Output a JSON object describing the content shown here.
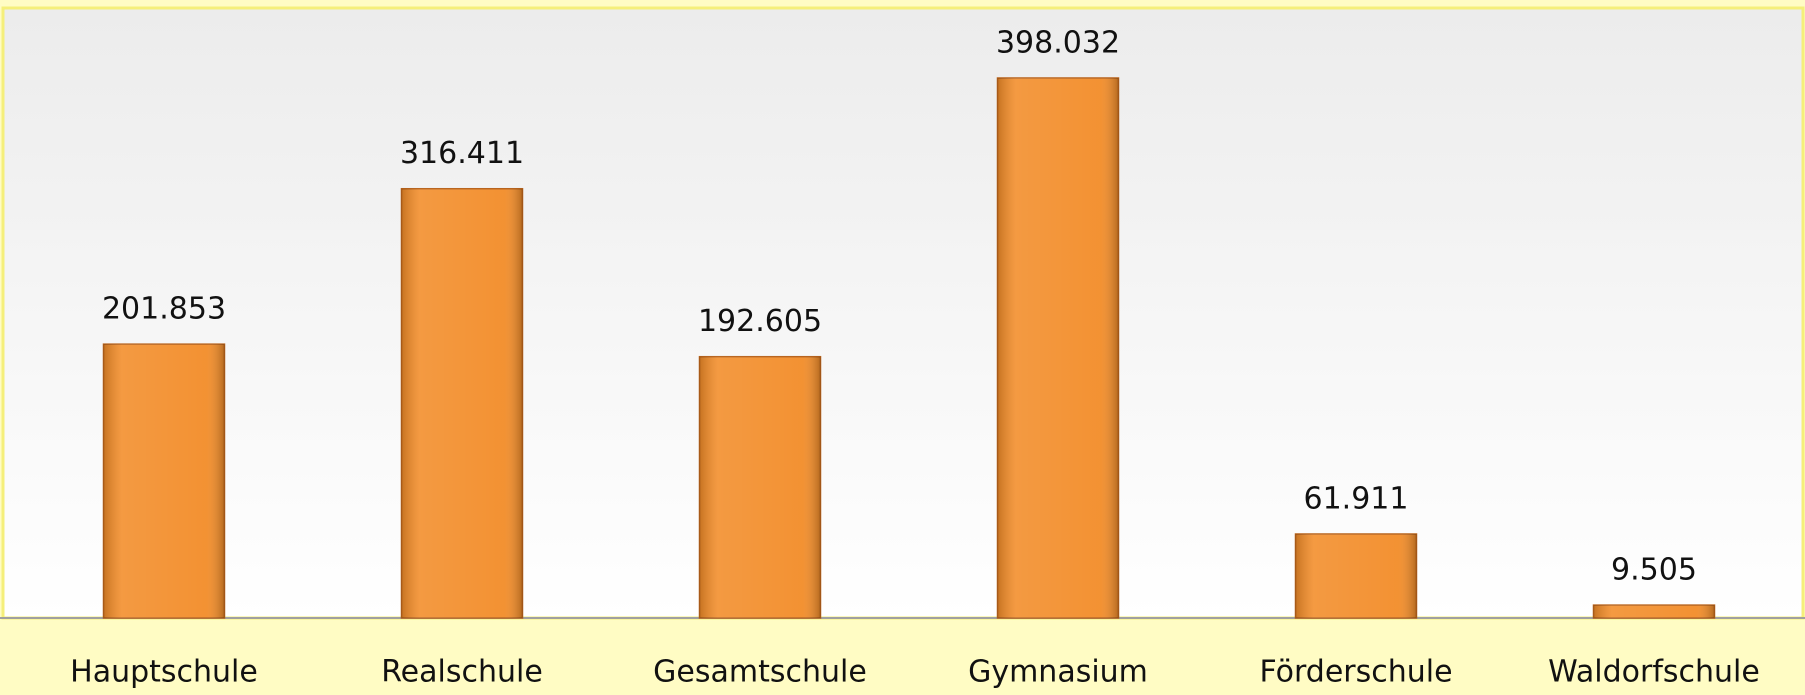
{
  "chart_data": {
    "type": "bar",
    "categories": [
      "Hauptschule",
      "Realschule",
      "Gesamtschule",
      "Gymnasium",
      "Förderschule",
      "Waldorfschule"
    ],
    "values": [
      201853,
      316411,
      192605,
      398032,
      61911,
      9505
    ],
    "value_labels": [
      "201.853",
      "316.411",
      "192.605",
      "398.032",
      "61.911",
      "9.505"
    ],
    "color": "#f28c28",
    "ylim": [
      0,
      450000
    ]
  }
}
